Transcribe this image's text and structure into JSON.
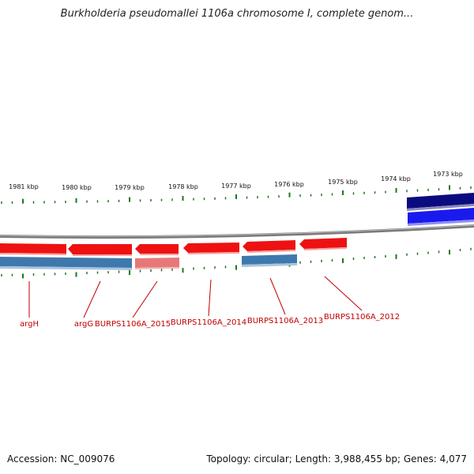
{
  "title": "Burkholderia pseudomallei 1106a chromosome I, complete genom...",
  "footer": {
    "accession_text": "Accession: NC_009076",
    "summary_text": "Topology: circular; Length: 3,988,455 bp; Genes: 4,077"
  },
  "colors": {
    "backbone": "#7a7a7a",
    "gene_forward_red": "#ee1111",
    "gene_light_red": "#e87878",
    "cds_blue": "#3f78ad",
    "navy": "#0b0b80",
    "bright_blue": "#1a1aee",
    "tick_green": "#1a7a1a",
    "label_red": "#c00000"
  },
  "scale_labels": [
    "1981 kbp",
    "1980 kbp",
    "1979 kbp",
    "1978 kbp",
    "1977 kbp",
    "1976 kbp",
    "1975 kbp",
    "1974 kbp",
    "1973 kbp"
  ],
  "gene_labels": [
    "argH",
    "argG",
    "BURPS1106A_2015",
    "BURPS1106A_2014",
    "BURPS1106A_2013",
    "BURPS1106A_2012"
  ]
}
